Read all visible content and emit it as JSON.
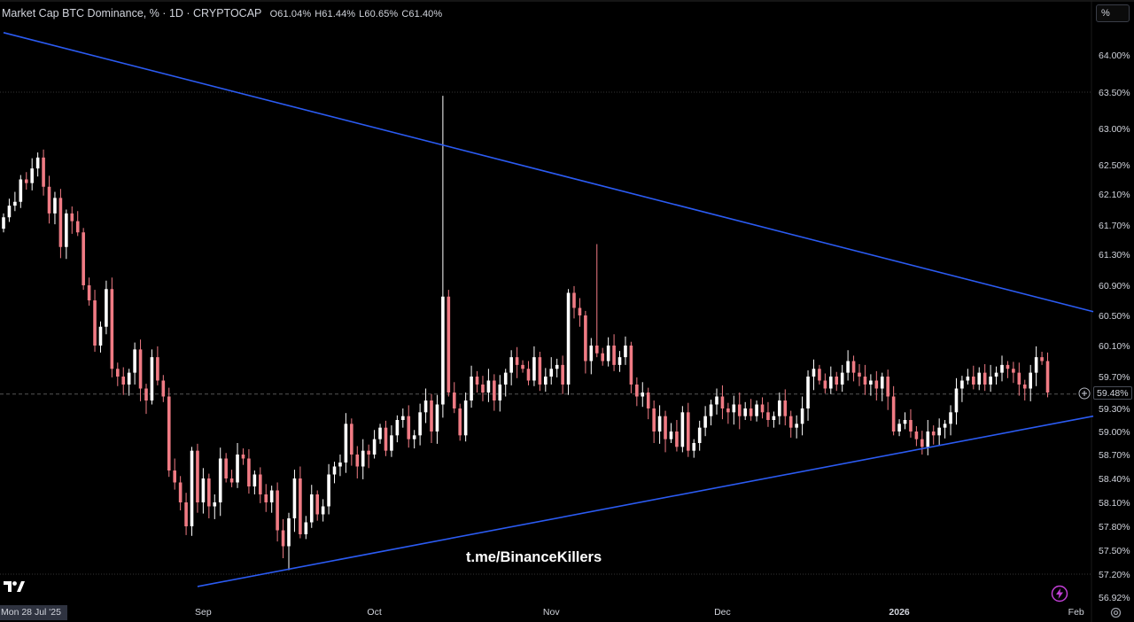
{
  "legend": {
    "title": "Market Cap BTC Dominance, % · 1D · CRYPTOCAP",
    "open": "O61.04%",
    "high": "H61.44%",
    "low": "L60.65%",
    "close": "C61.40%"
  },
  "unit_button": "%",
  "watermark": "t.me/BinanceKillers",
  "cursor_date": "Mon 28 Jul '25",
  "current_price_label": "59.48%",
  "colors": {
    "up": "#ffffff",
    "down": "#f07b84",
    "trendline": "#2b5bf2",
    "grid": "#333333"
  },
  "icons": [
    "tradingview-logo-icon",
    "flash-icon",
    "settings-icon",
    "plus-circle-icon"
  ],
  "chart_data": {
    "type": "candlestick",
    "title": "Market Cap BTC Dominance, % · 1D · CRYPTOCAP",
    "x_ticks": [
      {
        "label": "Sep",
        "date": "2025-09-01"
      },
      {
        "label": "Oct",
        "date": "2025-10-01"
      },
      {
        "label": "Nov",
        "date": "2025-11-01"
      },
      {
        "label": "Dec",
        "date": "2025-12-01"
      },
      {
        "label": "2026",
        "date": "2026-01-01"
      },
      {
        "label": "Feb",
        "date": "2026-02-01"
      }
    ],
    "y_ticks": [
      "64.00%",
      "63.50%",
      "63.00%",
      "62.50%",
      "62.10%",
      "61.70%",
      "61.30%",
      "60.90%",
      "60.50%",
      "60.10%",
      "59.70%",
      "59.30%",
      "59.00%",
      "58.70%",
      "58.40%",
      "58.10%",
      "57.80%",
      "57.50%",
      "57.20%",
      "56.92%"
    ],
    "current_price": 59.48,
    "date_range": [
      "2025-07-28",
      "2026-02-04"
    ],
    "close_values": [
      61.8,
      61.95,
      62.0,
      62.3,
      62.25,
      62.45,
      62.6,
      62.2,
      61.85,
      62.05,
      61.4,
      61.85,
      61.75,
      61.6,
      60.9,
      60.7,
      60.1,
      60.35,
      60.85,
      59.8,
      59.7,
      59.6,
      59.75,
      60.05,
      59.55,
      59.4,
      59.95,
      59.65,
      59.45,
      58.5,
      58.35,
      58.1,
      57.8,
      58.75,
      58.1,
      58.4,
      58.05,
      58.1,
      58.65,
      58.4,
      58.35,
      58.7,
      58.65,
      58.3,
      58.45,
      58.2,
      58.1,
      58.25,
      57.75,
      57.55,
      57.9,
      58.4,
      57.7,
      57.85,
      58.2,
      57.95,
      58.05,
      58.45,
      58.55,
      58.6,
      59.1,
      58.7,
      58.55,
      58.75,
      58.7,
      58.9,
      59.05,
      58.75,
      58.95,
      59.15,
      59.2,
      58.9,
      58.95,
      59.25,
      59.4,
      59.0,
      59.35,
      60.75,
      59.5,
      59.3,
      58.95,
      59.4,
      59.7,
      59.6,
      59.5,
      59.65,
      59.4,
      59.6,
      59.75,
      59.95,
      59.85,
      59.8,
      59.65,
      59.95,
      59.6,
      59.7,
      59.8,
      59.85,
      59.6,
      60.8,
      60.6,
      60.5,
      59.9,
      60.1,
      60.0,
      59.9,
      60.1,
      59.85,
      59.95,
      60.1,
      59.6,
      59.45,
      59.5,
      59.3,
      59.0,
      59.2,
      58.9,
      59.0,
      58.8,
      59.25,
      58.75,
      58.85,
      59.05,
      59.2,
      59.35,
      59.45,
      59.3,
      59.25,
      59.35,
      59.2,
      59.3,
      59.2,
      59.35,
      59.25,
      59.15,
      59.2,
      59.4,
      59.2,
      59.05,
      59.1,
      59.3,
      59.7,
      59.8,
      59.65,
      59.55,
      59.7,
      59.6,
      59.75,
      59.9,
      59.75,
      59.7,
      59.6,
      59.65,
      59.55,
      59.7,
      59.45,
      59.0,
      59.1,
      59.15,
      59.0,
      58.9,
      58.8,
      59.0,
      58.95,
      59.05,
      59.1,
      59.25,
      59.55,
      59.65,
      59.7,
      59.6,
      59.75,
      59.6,
      59.7,
      59.75,
      59.85,
      59.8,
      59.75,
      59.6,
      59.55,
      59.75,
      59.95,
      59.9,
      59.5
    ],
    "trendlines": [
      {
        "name": "upper",
        "points": [
          [
            "2025-07-28",
            64.3
          ],
          [
            "2026-02-04",
            60.55
          ]
        ]
      },
      {
        "name": "lower",
        "points": [
          [
            "2025-08-31",
            57.05
          ],
          [
            "2026-02-04",
            59.2
          ]
        ]
      }
    ]
  }
}
